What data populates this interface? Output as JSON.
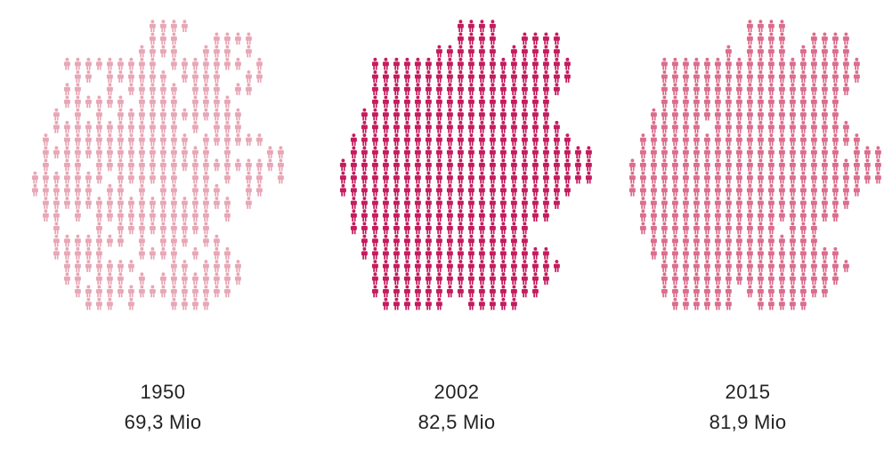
{
  "chart_data": {
    "type": "pictogram",
    "unit_icon": "person-icon",
    "shape": "map of Germany",
    "panels": [
      {
        "year": "1950",
        "value_label": "69,3 Mio",
        "value": 69.3,
        "color": "#e8a7b6"
      },
      {
        "year": "2002",
        "value_label": "82,5 Mio",
        "value": 82.5,
        "color": "#c41c5e"
      },
      {
        "year": "2015",
        "value_label": "81,9 Mio",
        "value": 81.9,
        "color": "#db6d8d"
      }
    ]
  }
}
